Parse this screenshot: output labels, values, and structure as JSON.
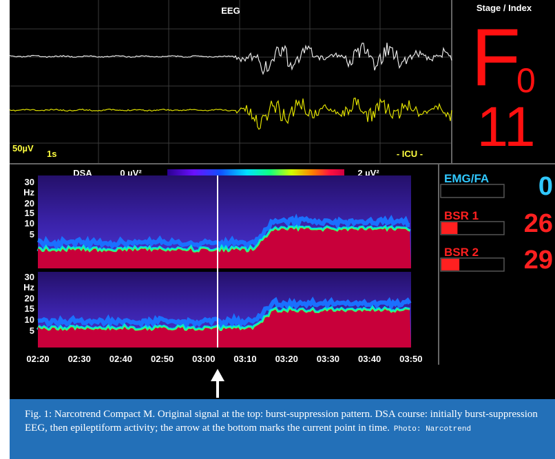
{
  "eeg": {
    "title": "EEG",
    "amplitude": "50µV",
    "timebase": "1s",
    "mode": "- ICU -"
  },
  "stage": {
    "title": "Stage / Index",
    "stage": "F",
    "substage": "0",
    "index": "11"
  },
  "dsa": {
    "title": "DSA",
    "scale_min": "0 µV²",
    "scale_max": "2 µV²",
    "y_labels": [
      "30",
      "Hz",
      "20",
      "15",
      "10",
      "5"
    ],
    "time_labels": [
      "02:20",
      "02:30",
      "02:40",
      "02:50",
      "03:00",
      "03:10",
      "03:20",
      "03:30",
      "03:40",
      "03:50"
    ]
  },
  "parameters": [
    {
      "label": "EMG/FA",
      "value": 0
    },
    {
      "label": "BSR 1",
      "value": 26
    },
    {
      "label": "BSR 2",
      "value": 29
    }
  ],
  "caption": {
    "text": "Fig. 1: Narcotrend Compact M. Original signal at the top: burst-suppression pattern. DSA course: initially burst-suppression EEG, then epileptiform activity; the arrow at the bottom marks the current point in time.",
    "credit": "Photo: Narcotrend"
  }
}
